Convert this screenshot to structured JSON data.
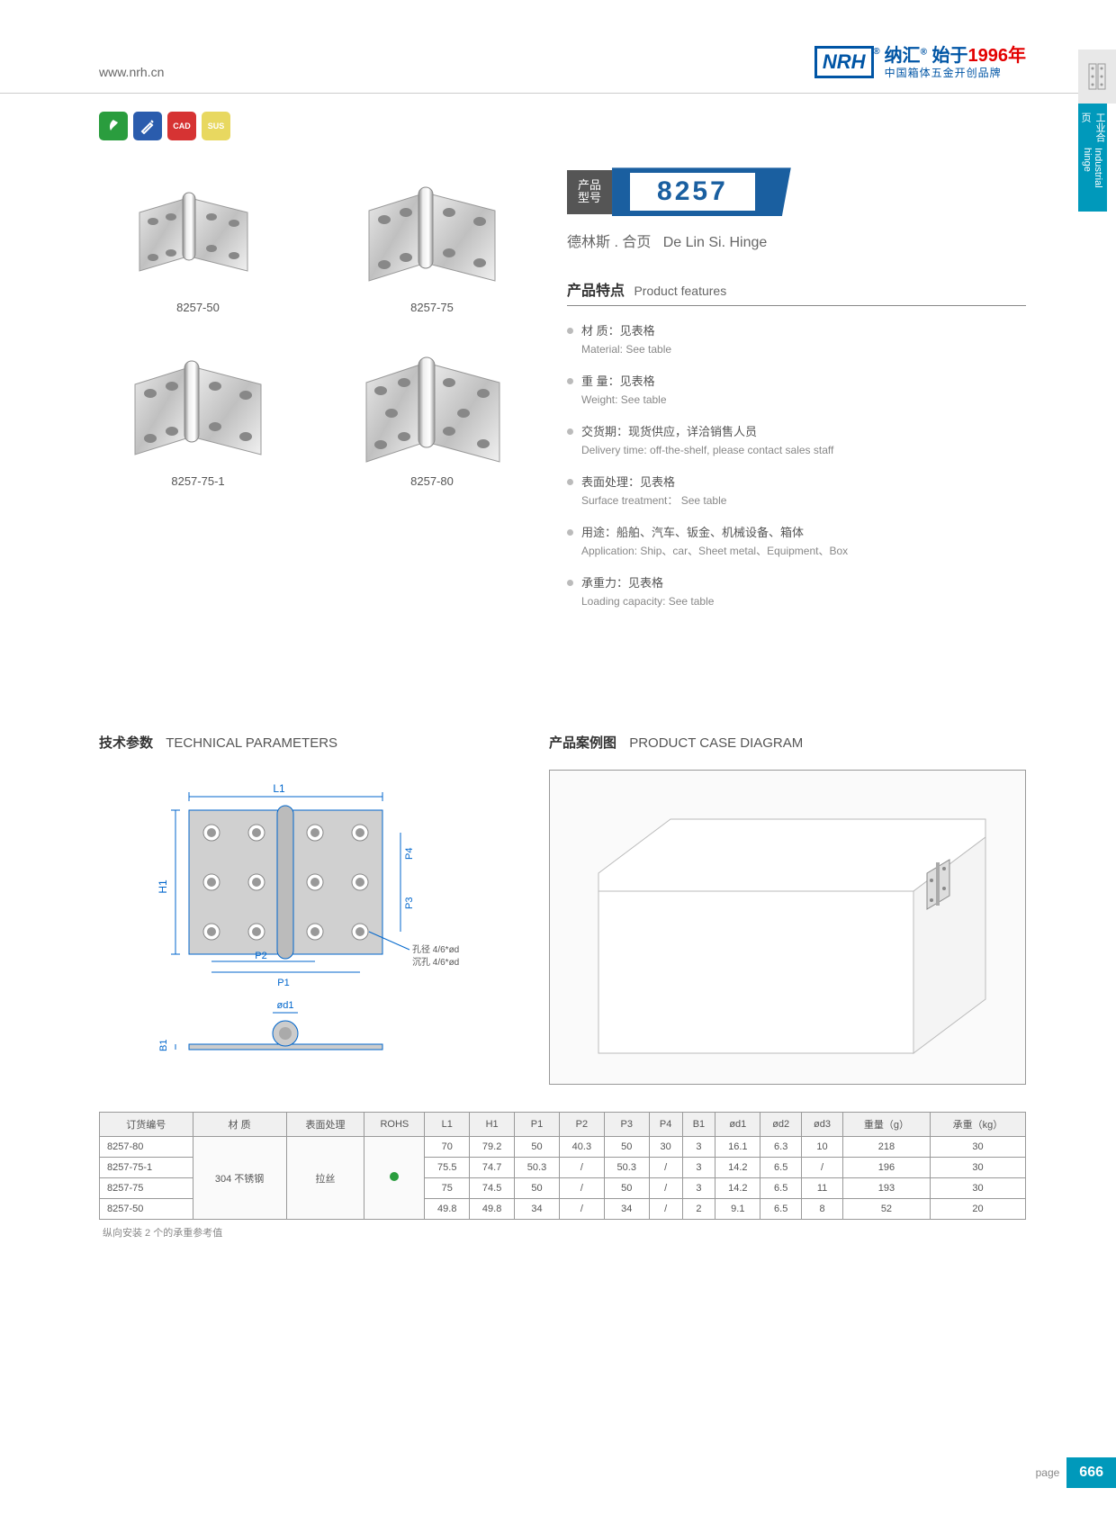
{
  "header": {
    "site_url": "www.nrh.cn",
    "logo_text": "NRH",
    "brand_cn": "纳汇",
    "brand_since": "始于",
    "brand_year": "1996年",
    "brand_sub": "中国箱体五金开创品牌"
  },
  "side_tab": {
    "label_cn": "工业合页",
    "label_en": "Industrial hinge"
  },
  "badges": [
    {
      "color": "green",
      "text": ""
    },
    {
      "color": "blue",
      "text": ""
    },
    {
      "color": "red",
      "text": "CAD"
    },
    {
      "color": "yellow",
      "text": "SUS"
    }
  ],
  "products": [
    {
      "label": "8257-50"
    },
    {
      "label": "8257-75"
    },
    {
      "label": "8257-75-1"
    },
    {
      "label": "8257-80"
    }
  ],
  "model": {
    "label_line1": "产品",
    "label_line2": "型号",
    "number": "8257",
    "sub_cn": "德林斯 . 合页",
    "sub_en": "De Lin Si. Hinge"
  },
  "features_title": {
    "cn": "产品特点",
    "en": "Product features"
  },
  "features": [
    {
      "cn": "材 质：见表格",
      "en": "Material: See table"
    },
    {
      "cn": "重 量：见表格",
      "en": "Weight: See table"
    },
    {
      "cn": "交货期：现货供应，详洽销售人员",
      "en": "Delivery time: off-the-shelf, please contact sales staff"
    },
    {
      "cn": "表面处理：见表格",
      "en": "Surface treatment： See table"
    },
    {
      "cn": "用途：船舶、汽车、钣金、机械设备、箱体",
      "en": "Application: Ship、car、Sheet metal、Equipment、Box"
    },
    {
      "cn": "承重力：见表格",
      "en": "Loading capacity: See table"
    }
  ],
  "tech_title": {
    "cn": "技术参数",
    "en": "TECHNICAL PARAMETERS"
  },
  "case_title": {
    "cn": "产品案例图",
    "en": "PRODUCT CASE DIAGRAM"
  },
  "diagram_labels": {
    "L1": "L1",
    "H1": "H1",
    "P1": "P1",
    "P2": "P2",
    "P3": "P3",
    "P4": "P4",
    "B1": "B1",
    "od1": "ød1",
    "hole1": "孔径 4/6*ød2",
    "hole2": "沉孔 4/6*ød3"
  },
  "table": {
    "columns": [
      "订货编号",
      "材    质",
      "表面处理",
      "ROHS",
      "L1",
      "H1",
      "P1",
      "P2",
      "P3",
      "P4",
      "B1",
      "ød1",
      "ød2",
      "ød3",
      "重量（g）",
      "承重（kg）"
    ],
    "material": "304 不锈钢",
    "surface": "拉丝",
    "rows": [
      {
        "code": "8257-80",
        "L1": "70",
        "H1": "79.2",
        "P1": "50",
        "P2": "40.3",
        "P3": "50",
        "P4": "30",
        "B1": "3",
        "od1": "16.1",
        "od2": "6.3",
        "od3": "10",
        "weight": "218",
        "load": "30"
      },
      {
        "code": "8257-75-1",
        "L1": "75.5",
        "H1": "74.7",
        "P1": "50.3",
        "P2": "/",
        "P3": "50.3",
        "P4": "/",
        "B1": "3",
        "od1": "14.2",
        "od2": "6.5",
        "od3": "/",
        "weight": "196",
        "load": "30"
      },
      {
        "code": "8257-75",
        "L1": "75",
        "H1": "74.5",
        "P1": "50",
        "P2": "/",
        "P3": "50",
        "P4": "/",
        "B1": "3",
        "od1": "14.2",
        "od2": "6.5",
        "od3": "11",
        "weight": "193",
        "load": "30"
      },
      {
        "code": "8257-50",
        "L1": "49.8",
        "H1": "49.8",
        "P1": "34",
        "P2": "/",
        "P3": "34",
        "P4": "/",
        "B1": "2",
        "od1": "9.1",
        "od2": "6.5",
        "od3": "8",
        "weight": "52",
        "load": "20"
      }
    ]
  },
  "table_note": "纵向安装 2 个的承重参考值",
  "footer": {
    "page_label": "page",
    "page_num": "666"
  },
  "colors": {
    "brand_blue": "#0055a5",
    "accent_teal": "#0099bb",
    "model_blue": "#1a5fa0",
    "brand_red": "#e30000"
  }
}
